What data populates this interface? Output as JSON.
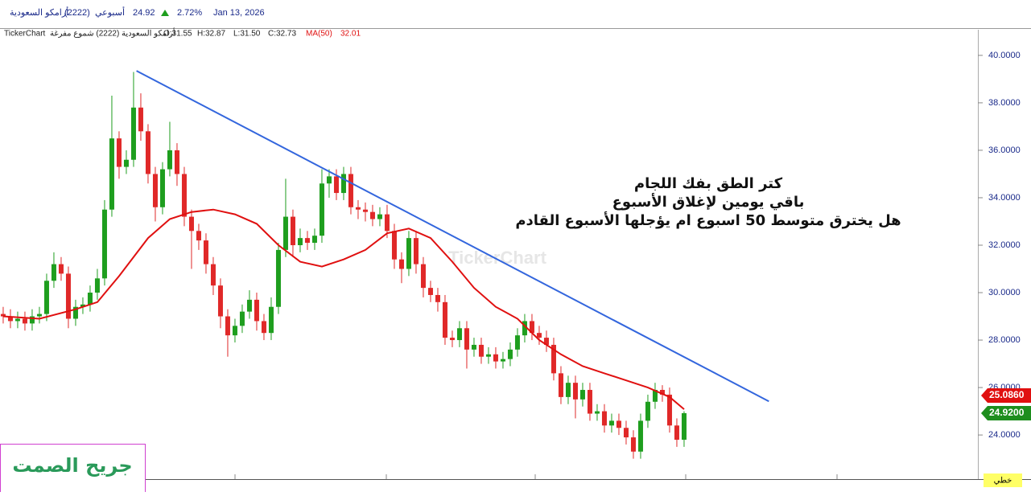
{
  "header": {
    "date": "Jan 13, 2026",
    "change": "2.72%",
    "price": "24.92",
    "period": "أسبوعي",
    "symbol": "(2222)",
    "name": "أرامكو السعودية"
  },
  "info": {
    "brand": "TickerChart",
    "desc": "أرامكو السعودية (2222) شموع مفرغة",
    "open": "O:31.55",
    "high": "H:32.87",
    "low": "L:31.50",
    "close": "C:32.73",
    "ma_value": "32.01"
  },
  "footer": {
    "author": "جريح الصمت",
    "mode": "خطي"
  },
  "chart_data": {
    "type": "candlestick",
    "watermark": "TickerChart",
    "annotation": [
      "كتر الطق بفك اللجام",
      "باقي يومين لإغلاق الأسبوع",
      "هل يخترق متوسط 50 اسبوع ام يؤجلها الأسبوع القادم"
    ],
    "xlim": [
      -0.44,
      134.56
    ],
    "ylim": [
      22.14,
      41.08
    ],
    "yticks": [
      {
        "value": 24,
        "label": "24.0000"
      },
      {
        "value": 26,
        "label": "26.0000"
      },
      {
        "value": 28,
        "label": "28.0000"
      },
      {
        "value": 30,
        "label": "30.0000"
      },
      {
        "value": 32,
        "label": "32.0000"
      },
      {
        "value": 34,
        "label": "34.0000"
      },
      {
        "value": 36,
        "label": "36.0000"
      },
      {
        "value": 38,
        "label": "38.0000"
      },
      {
        "value": 40,
        "label": "40.0000"
      }
    ],
    "up_color": "#1e9e1e",
    "down_color": "#e02828",
    "open": [
      29.1,
      29.0,
      28.8,
      28.9,
      28.7,
      29.0,
      29.1,
      30.5,
      31.2,
      30.8,
      28.9,
      29.4,
      29.5,
      30.0,
      30.6,
      33.5,
      36.5,
      35.3,
      35.6,
      37.8,
      36.8,
      35.0,
      33.6,
      35.2,
      36.0,
      35.0,
      33.2,
      32.6,
      32.2,
      31.2,
      30.3,
      29.0,
      28.2,
      28.6,
      29.2,
      29.7,
      28.8,
      28.3,
      29.4,
      31.8,
      33.2,
      32.0,
      32.3,
      32.1,
      32.4,
      34.6,
      34.9,
      34.2,
      35.0,
      33.6,
      33.5,
      33.4,
      33.1,
      33.3,
      32.6,
      31.4,
      31.0,
      32.3,
      31.2,
      30.2,
      29.9,
      29.6,
      28.1,
      28.0,
      28.5,
      27.6,
      27.8,
      27.3,
      27.4,
      27.1,
      27.2,
      27.6,
      28.2,
      28.8,
      28.3,
      28.1,
      27.8,
      26.6,
      25.6,
      26.2,
      25.5,
      25.9,
      24.9,
      25.0,
      24.4,
      24.6,
      24.3,
      23.9,
      23.3,
      24.6,
      25.4,
      25.9,
      25.7,
      24.4,
      23.8
    ],
    "high": [
      29.4,
      29.3,
      29.2,
      29.2,
      29.3,
      29.4,
      30.8,
      31.7,
      31.5,
      31.1,
      29.7,
      29.8,
      30.3,
      31.0,
      33.9,
      38.3,
      36.8,
      36.0,
      39.3,
      38.4,
      37.1,
      35.3,
      35.5,
      37.2,
      36.3,
      35.3,
      33.5,
      32.9,
      32.5,
      31.5,
      30.6,
      29.3,
      28.9,
      29.5,
      30.1,
      30.0,
      29.1,
      29.8,
      32.1,
      34.8,
      33.5,
      32.7,
      32.6,
      32.7,
      35.2,
      35.2,
      35.2,
      35.3,
      35.3,
      33.9,
      33.8,
      33.7,
      33.6,
      33.7,
      32.9,
      31.7,
      32.6,
      32.6,
      31.5,
      30.5,
      30.2,
      29.9,
      28.4,
      28.8,
      28.8,
      28.1,
      28.1,
      27.7,
      27.7,
      27.5,
      27.9,
      28.5,
      29.1,
      29.1,
      28.6,
      28.4,
      28.1,
      26.9,
      26.5,
      26.5,
      26.2,
      26.2,
      25.3,
      25.3,
      24.9,
      24.9,
      24.6,
      24.2,
      24.9,
      25.7,
      26.2,
      26.1,
      26.0,
      24.7,
      25.0
    ],
    "low": [
      28.7,
      28.5,
      28.5,
      28.4,
      28.4,
      28.7,
      28.8,
      30.2,
      30.5,
      28.5,
      28.6,
      29.1,
      29.2,
      29.7,
      30.3,
      33.2,
      34.8,
      35.0,
      35.3,
      36.4,
      34.6,
      33.0,
      33.3,
      34.9,
      34.5,
      32.8,
      31.0,
      31.8,
      30.8,
      29.9,
      28.5,
      27.3,
      27.9,
      28.3,
      28.9,
      28.4,
      28.0,
      28.0,
      29.1,
      31.5,
      31.5,
      31.7,
      31.8,
      31.8,
      32.1,
      34.0,
      33.9,
      33.9,
      33.3,
      33.1,
      33.0,
      32.8,
      32.8,
      32.3,
      31.0,
      30.4,
      30.7,
      30.8,
      29.8,
      29.6,
      29.2,
      27.8,
      27.7,
      27.7,
      26.8,
      27.3,
      27.0,
      27.0,
      26.8,
      26.8,
      26.9,
      27.3,
      27.9,
      28.0,
      27.8,
      27.5,
      26.3,
      25.3,
      25.3,
      24.7,
      25.2,
      24.6,
      24.6,
      24.1,
      24.1,
      24.0,
      23.6,
      23.0,
      23.0,
      24.3,
      25.1,
      25.4,
      24.1,
      23.5,
      23.5
    ],
    "close": [
      29.0,
      28.8,
      28.9,
      28.7,
      29.0,
      29.1,
      30.5,
      31.2,
      30.8,
      28.9,
      29.4,
      29.5,
      30.0,
      30.6,
      33.5,
      36.5,
      35.3,
      35.6,
      37.8,
      36.8,
      35.0,
      33.6,
      35.2,
      36.0,
      35.0,
      33.2,
      32.6,
      32.2,
      31.2,
      30.3,
      29.0,
      28.2,
      28.6,
      29.2,
      29.7,
      28.8,
      28.3,
      29.4,
      31.8,
      33.2,
      32.0,
      32.3,
      32.1,
      32.4,
      34.6,
      34.9,
      34.2,
      35.0,
      33.6,
      33.5,
      33.4,
      33.1,
      33.3,
      32.6,
      31.4,
      31.0,
      32.3,
      31.2,
      30.2,
      29.9,
      29.6,
      28.1,
      28.0,
      28.5,
      27.6,
      27.8,
      27.3,
      27.4,
      27.1,
      27.2,
      27.6,
      28.2,
      28.8,
      28.3,
      28.1,
      27.8,
      26.6,
      25.6,
      26.2,
      25.5,
      25.9,
      24.9,
      25.0,
      24.4,
      24.6,
      24.3,
      23.9,
      23.3,
      24.6,
      25.4,
      25.9,
      25.7,
      24.4,
      23.8,
      24.92
    ],
    "ma": {
      "name": "MA(50)",
      "color": "#e01010",
      "x": [
        0,
        5,
        10,
        13,
        16,
        20,
        23,
        26,
        29,
        32,
        35,
        38,
        41,
        44,
        47,
        50,
        53,
        56,
        59,
        62,
        65,
        68,
        71,
        74,
        77,
        80,
        83,
        86,
        89,
        92,
        94
      ],
      "values": [
        29.0,
        28.9,
        29.3,
        29.6,
        30.7,
        32.3,
        33.1,
        33.4,
        33.5,
        33.3,
        32.9,
        32.0,
        31.3,
        31.1,
        31.4,
        31.8,
        32.5,
        32.7,
        32.3,
        31.3,
        30.2,
        29.4,
        28.9,
        28.0,
        27.4,
        26.9,
        26.6,
        26.3,
        26.0,
        25.6,
        25.086
      ]
    },
    "trendline": {
      "color": "#3366dd",
      "x": [
        18.4,
        105.7
      ],
      "values": [
        39.35,
        25.42
      ]
    },
    "price_labels": [
      {
        "value": 24.92,
        "label": "24.9200",
        "color": "#1e8e1e"
      },
      {
        "value": 25.086,
        "label": "25.0860",
        "color": "#e01010"
      }
    ]
  }
}
